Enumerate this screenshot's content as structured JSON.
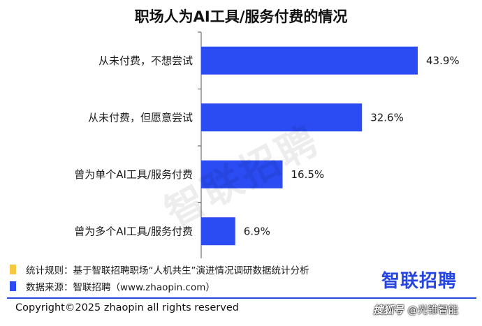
{
  "chart_data": {
    "type": "bar",
    "orientation": "horizontal",
    "title": "职场人为AI工具/服务付费的情况",
    "categories": [
      "从未付费，不想尝试",
      "从未付费，但愿意尝试",
      "曾为单个AI工具/服务付费",
      "曾为多个AI工具/服务付费"
    ],
    "values": [
      43.9,
      32.6,
      16.5,
      6.9
    ],
    "value_labels": [
      "43.9%",
      "32.6%",
      "16.5%",
      "6.9%"
    ],
    "xlim": [
      0,
      43.9
    ],
    "grid": false,
    "bar_color": "#2b4cf2"
  },
  "watermark": "智联招聘",
  "notes": [
    {
      "text": "统计规则：基于智联招聘职场“人机共生”演进情况调研数据统计分析",
      "color": "#f5c842"
    },
    {
      "text": "数据来源：智联招聘（www.zhaopin.com）",
      "color": "#2b4cf2"
    }
  ],
  "logo": "智联招聘",
  "copyright": "Copyright©2025 zhaopin all rights reserved",
  "source_tag": {
    "badge": "搜狐号",
    "name": "@光锥智能"
  }
}
